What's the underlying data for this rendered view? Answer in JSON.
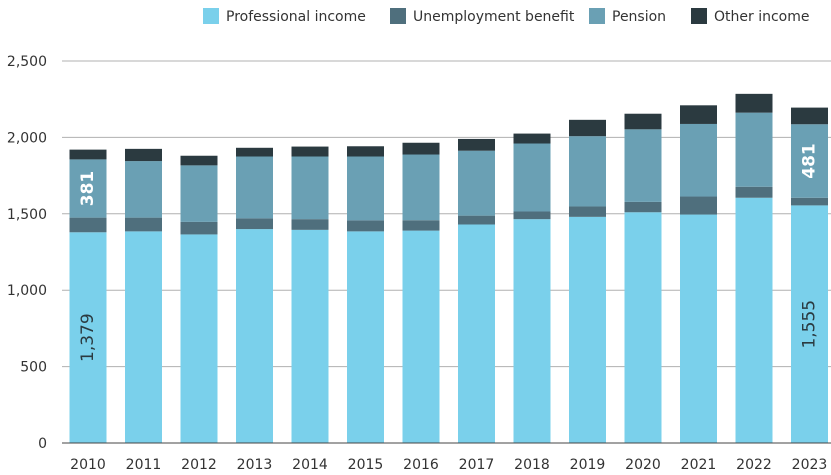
{
  "colors": {
    "professional": "#7ad0eb",
    "unemployment": "#4f6f7d",
    "pension": "#6aa0b4",
    "other": "#2b3a40",
    "grid": "#b0b0b0",
    "axis": "#444444"
  },
  "chart_data": {
    "type": "bar",
    "stacked": true,
    "title": "",
    "xlabel": "",
    "ylabel": "",
    "ylim": [
      0,
      2500
    ],
    "yticks": [
      0,
      500,
      1000,
      1500,
      2000,
      2500
    ],
    "ytick_labels": [
      "0",
      "500",
      "1,000",
      "1,500",
      "2,000",
      "2,500"
    ],
    "grid": true,
    "legend_position": "top-right",
    "categories": [
      "2010",
      "2011",
      "2012",
      "2013",
      "2014",
      "2015",
      "2016",
      "2017",
      "2018",
      "2019",
      "2020",
      "2021",
      "2022",
      "2023"
    ],
    "series": [
      {
        "name": "Professional income",
        "color_key": "professional",
        "values": [
          1379,
          1385,
          1365,
          1400,
          1395,
          1385,
          1390,
          1430,
          1465,
          1480,
          1510,
          1495,
          1605,
          1555
        ]
      },
      {
        "name": "Unemployment benefit",
        "color_key": "unemployment",
        "values": [
          96,
          90,
          82,
          70,
          70,
          72,
          68,
          58,
          50,
          68,
          68,
          118,
          72,
          50
        ]
      },
      {
        "name": "Pension",
        "color_key": "pension",
        "values": [
          381,
          370,
          370,
          405,
          410,
          418,
          430,
          425,
          445,
          460,
          475,
          475,
          485,
          481
        ]
      },
      {
        "name": "Other income",
        "color_key": "other",
        "values": [
          64,
          80,
          63,
          57,
          65,
          67,
          77,
          77,
          65,
          107,
          102,
          122,
          123,
          109
        ]
      }
    ],
    "annotations": [
      {
        "text": "1,379",
        "category_index": 0,
        "series_index": 0,
        "color": "#2b3a40"
      },
      {
        "text": "381",
        "category_index": 0,
        "series_index": 2,
        "color": "#ffffff",
        "bold": true
      },
      {
        "text": "1,555",
        "category_index": 13,
        "series_index": 0,
        "color": "#2b3a40"
      },
      {
        "text": "481",
        "category_index": 13,
        "series_index": 2,
        "color": "#ffffff",
        "bold": true
      }
    ]
  }
}
